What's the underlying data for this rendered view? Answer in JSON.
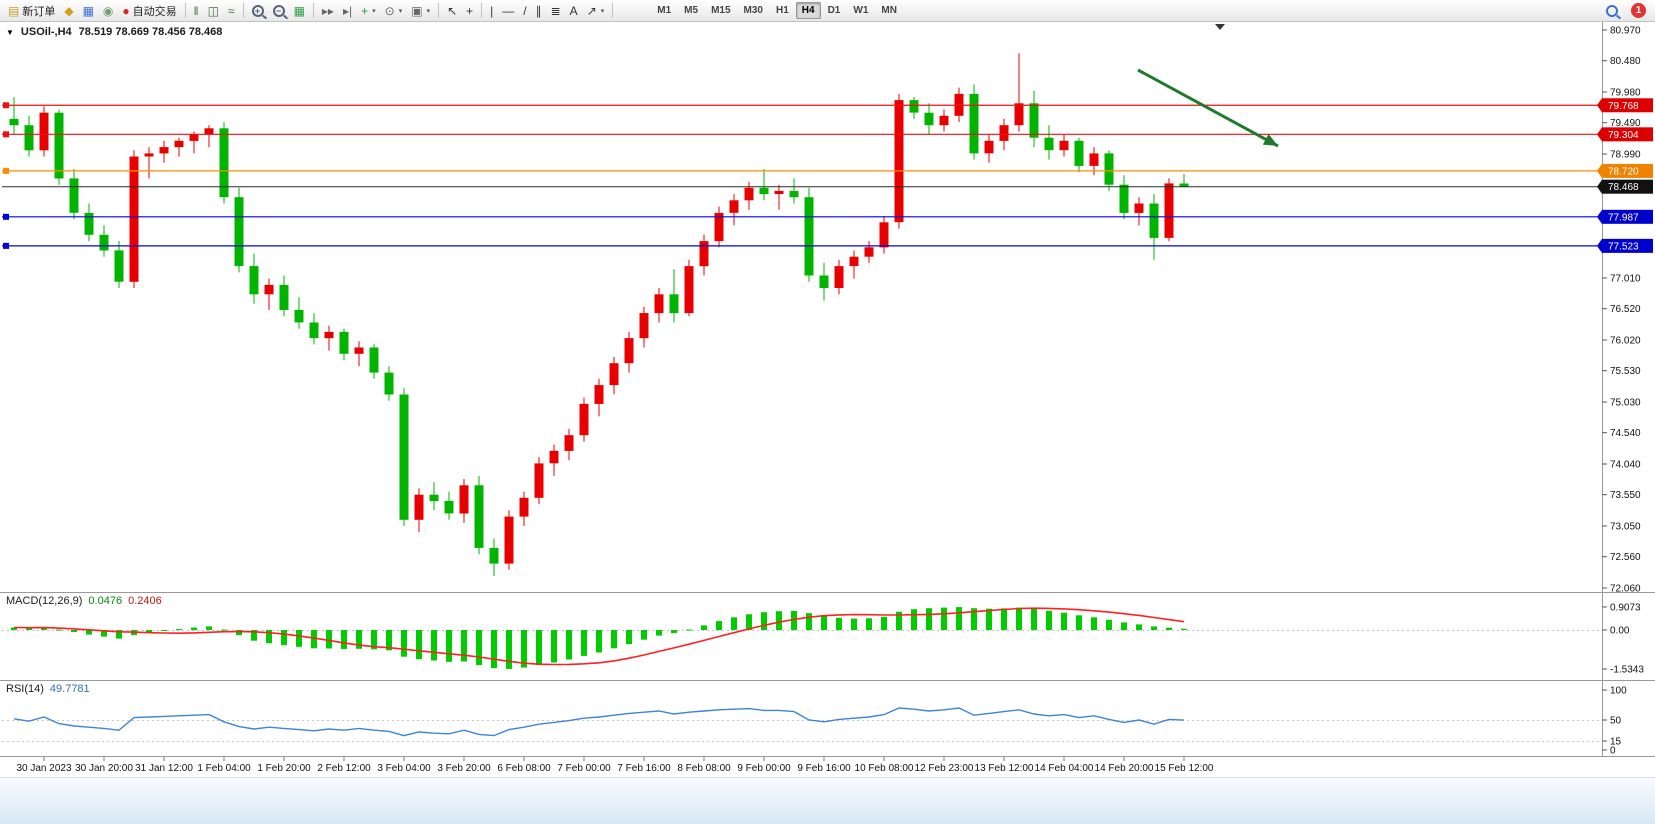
{
  "toolbar": {
    "notification_count": "1",
    "items": [
      {
        "kind": "button",
        "name": "new-order-button",
        "icon": "new-order-icon",
        "glyph": "▤",
        "color": "#c8a02c",
        "label": "新订单"
      },
      {
        "kind": "glyph",
        "name": "charts-window-button",
        "icon": "charts-icon",
        "glyph": "◆",
        "color": "#d4a017"
      },
      {
        "kind": "glyph",
        "name": "profiles-button",
        "icon": "profiles-icon",
        "glyph": "▦",
        "color": "#3b6fd4"
      },
      {
        "kind": "glyph",
        "name": "alerts-button",
        "icon": "alerts-icon",
        "glyph": "◉",
        "color": "#6f9f6f"
      },
      {
        "kind": "button",
        "name": "auto-trading-button",
        "icon": "autotrade-icon",
        "glyph": "●",
        "color": "#dd2222",
        "label": "自动交易"
      },
      {
        "kind": "sep"
      },
      {
        "kind": "glyph",
        "name": "bar-chart-type-button",
        "icon": "bar-chart-icon",
        "glyph": "‖",
        "color": "#456f45"
      },
      {
        "kind": "glyph",
        "name": "candlestick-type-button",
        "icon": "candlestick-icon",
        "glyph": "◫",
        "color": "#456f45"
      },
      {
        "kind": "glyph",
        "name": "line-chart-type-button",
        "icon": "line-chart-icon",
        "glyph": "≈",
        "color": "#456f45"
      },
      {
        "kind": "sep"
      },
      {
        "kind": "mag",
        "name": "zoom-in-button",
        "icon": "zoom-in-icon",
        "sign": "+",
        "color": "#55617a"
      },
      {
        "kind": "mag",
        "name": "zoom-out-button",
        "icon": "zoom-out-icon",
        "sign": "−",
        "color": "#55617a"
      },
      {
        "kind": "glyph",
        "name": "tile-windows-button",
        "icon": "tile-windows-icon",
        "glyph": "▦",
        "color": "#2f9e44"
      },
      {
        "kind": "sep"
      },
      {
        "kind": "glyph",
        "name": "auto-scroll-button",
        "icon": "auto-scroll-icon",
        "glyph": "▸▸",
        "color": "#666666"
      },
      {
        "kind": "glyph",
        "name": "chart-shift-button",
        "icon": "chart-shift-icon",
        "glyph": "▸|",
        "color": "#666666"
      },
      {
        "kind": "dropdown",
        "name": "indicators-button",
        "icon": "indicators-plus-icon",
        "glyph": "+",
        "color": "#1e9e3e"
      },
      {
        "kind": "dropdown",
        "name": "periods-button",
        "icon": "clock-icon",
        "glyph": "⊙",
        "color": "#666666"
      },
      {
        "kind": "dropdown",
        "name": "templates-button",
        "icon": "template-icon",
        "glyph": "▣",
        "color": "#666666"
      },
      {
        "kind": "sep"
      },
      {
        "kind": "glyph",
        "name": "cursor-button",
        "icon": "cursor-icon",
        "glyph": "↖",
        "color": "#333333"
      },
      {
        "kind": "glyph",
        "name": "crosshair-button",
        "icon": "crosshair-icon",
        "glyph": "+",
        "color": "#333333"
      },
      {
        "kind": "sep"
      },
      {
        "kind": "glyph",
        "name": "vertical-line-tool-button",
        "icon": "vline-icon",
        "glyph": "|",
        "color": "#333333"
      },
      {
        "kind": "glyph",
        "name": "horizontal-line-tool-button",
        "icon": "hline-icon",
        "glyph": "—",
        "color": "#333333"
      },
      {
        "kind": "glyph",
        "name": "trendline-tool-button",
        "icon": "trendline-icon",
        "glyph": "/",
        "color": "#333333"
      },
      {
        "kind": "glyph",
        "name": "channel-tool-button",
        "icon": "channel-icon",
        "glyph": "∥",
        "color": "#333333"
      },
      {
        "kind": "glyph",
        "name": "fibonacci-tool-button",
        "icon": "fibonacci-icon",
        "glyph": "≣",
        "color": "#333333"
      },
      {
        "kind": "glyph",
        "name": "text-tool-button",
        "icon": "text-icon",
        "glyph": "A",
        "color": "#333333"
      },
      {
        "kind": "dropdown",
        "name": "arrows-tool-button",
        "icon": "arrows-icon",
        "glyph": "↗",
        "color": "#333333"
      },
      {
        "kind": "sep"
      }
    ],
    "timeframes": {
      "options": [
        "M1",
        "M5",
        "M15",
        "M30",
        "H1",
        "H4",
        "D1",
        "W1",
        "MN"
      ],
      "active": "H4"
    }
  },
  "chart": {
    "symbol_period": "USOil-,H4",
    "ohlc_text": "78.519 78.669 78.456 78.468"
  },
  "indicators": {
    "macd": {
      "label": "MACD(12,26,9)",
      "main_value": "0.0476",
      "signal_value": "0.2406"
    },
    "rsi": {
      "label": "RSI(14)",
      "value": "49.7781"
    }
  },
  "chart_data": {
    "type": "candlestick",
    "symbol": "USOil-",
    "period": "H4",
    "title": "USOil-,H4 78.519 78.669 78.456 78.468",
    "price_range": [
      72.06,
      80.97
    ],
    "grid": false,
    "candle_colors": {
      "bull": "#e80000",
      "bear": "#00b400"
    },
    "price_ticks": [
      "80.970",
      "80.480",
      "79.980",
      "79.490",
      "78.990",
      "77.010",
      "76.520",
      "76.020",
      "75.530",
      "75.030",
      "74.540",
      "74.040",
      "73.550",
      "73.050",
      "72.560",
      "72.060"
    ],
    "levels": [
      {
        "name": "resistance-line-1",
        "price": 79.768,
        "label": "79.768",
        "color": "#f01010",
        "badge": "#dd0000",
        "is_current": false
      },
      {
        "name": "resistance-line-2",
        "price": 79.304,
        "label": "79.304",
        "color": "#f01010",
        "badge": "#dd0000",
        "is_current": false
      },
      {
        "name": "pivot-line",
        "price": 78.72,
        "label": "78.720",
        "color": "#ff8c00",
        "badge": "#ef8200",
        "is_current": false
      },
      {
        "name": "current-price-line",
        "price": 78.468,
        "label": "78.468",
        "color": "#2a2a2a",
        "badge": "#111111",
        "is_current": true
      },
      {
        "name": "support-line-1",
        "price": 77.987,
        "label": "77.987",
        "color": "#0000e0",
        "badge": "#0000cc",
        "is_current": false
      },
      {
        "name": "support-line-2",
        "price": 77.523,
        "label": "77.523",
        "color": "#0000e0",
        "badge": "#0000cc",
        "is_current": false
      }
    ],
    "time_labels": [
      "30 Jan 2023",
      "30 Jan 20:00",
      "31 Jan 12:00",
      "1 Feb 04:00",
      "1 Feb 20:00",
      "2 Feb 12:00",
      "3 Feb 04:00",
      "3 Feb 20:00",
      "6 Feb 08:00",
      "7 Feb 00:00",
      "7 Feb 16:00",
      "8 Feb 08:00",
      "9 Feb 00:00",
      "9 Feb 16:00",
      "10 Feb 08:00",
      "12 Feb 23:00",
      "13 Feb 12:00",
      "14 Feb 04:00",
      "14 Feb 20:00",
      "15 Feb 12:00"
    ],
    "trend_arrow": {
      "from": [
        1138,
        70
      ],
      "to": [
        1278,
        146
      ],
      "color": "#1f7a2e"
    },
    "ohlc": [
      [
        79.55,
        79.9,
        79.3,
        79.45
      ],
      [
        79.45,
        79.6,
        78.95,
        79.05
      ],
      [
        79.05,
        79.75,
        78.95,
        79.65
      ],
      [
        79.65,
        79.7,
        78.5,
        78.6
      ],
      [
        78.6,
        78.75,
        77.95,
        78.05
      ],
      [
        78.05,
        78.2,
        77.6,
        77.7
      ],
      [
        77.7,
        77.85,
        77.35,
        77.45
      ],
      [
        77.45,
        77.6,
        76.85,
        76.95
      ],
      [
        76.95,
        79.05,
        76.85,
        78.95
      ],
      [
        78.95,
        79.1,
        78.6,
        79.0
      ],
      [
        79.0,
        79.2,
        78.85,
        79.1
      ],
      [
        79.1,
        79.25,
        78.95,
        79.2
      ],
      [
        79.2,
        79.35,
        79.0,
        79.3
      ],
      [
        79.3,
        79.45,
        79.1,
        79.4
      ],
      [
        79.4,
        79.5,
        78.2,
        78.3
      ],
      [
        78.3,
        78.45,
        77.1,
        77.2
      ],
      [
        77.2,
        77.4,
        76.6,
        76.75
      ],
      [
        76.75,
        77.0,
        76.5,
        76.9
      ],
      [
        76.9,
        77.05,
        76.4,
        76.5
      ],
      [
        76.5,
        76.7,
        76.2,
        76.3
      ],
      [
        76.3,
        76.45,
        75.95,
        76.05
      ],
      [
        76.05,
        76.25,
        75.85,
        76.15
      ],
      [
        76.15,
        76.2,
        75.7,
        75.8
      ],
      [
        75.8,
        76.0,
        75.6,
        75.9
      ],
      [
        75.9,
        75.95,
        75.4,
        75.5
      ],
      [
        75.5,
        75.6,
        75.05,
        75.15
      ],
      [
        75.15,
        75.25,
        73.05,
        73.15
      ],
      [
        73.15,
        73.65,
        72.95,
        73.55
      ],
      [
        73.55,
        73.75,
        73.3,
        73.45
      ],
      [
        73.45,
        73.6,
        73.15,
        73.25
      ],
      [
        73.25,
        73.8,
        73.1,
        73.7
      ],
      [
        73.7,
        73.85,
        72.6,
        72.7
      ],
      [
        72.7,
        72.85,
        72.25,
        72.45
      ],
      [
        72.45,
        73.3,
        72.35,
        73.2
      ],
      [
        73.2,
        73.6,
        73.05,
        73.5
      ],
      [
        73.5,
        74.15,
        73.4,
        74.05
      ],
      [
        74.05,
        74.35,
        73.85,
        74.25
      ],
      [
        74.25,
        74.6,
        74.1,
        74.5
      ],
      [
        74.5,
        75.1,
        74.4,
        75.0
      ],
      [
        75.0,
        75.4,
        74.8,
        75.3
      ],
      [
        75.3,
        75.75,
        75.15,
        75.65
      ],
      [
        75.65,
        76.15,
        75.5,
        76.05
      ],
      [
        76.05,
        76.55,
        75.9,
        76.45
      ],
      [
        76.45,
        76.85,
        76.3,
        76.75
      ],
      [
        76.75,
        77.15,
        76.3,
        76.45
      ],
      [
        76.45,
        77.3,
        76.4,
        77.2
      ],
      [
        77.2,
        77.7,
        77.05,
        77.6
      ],
      [
        77.6,
        78.15,
        77.5,
        78.05
      ],
      [
        78.05,
        78.35,
        77.85,
        78.25
      ],
      [
        78.25,
        78.55,
        78.1,
        78.45
      ],
      [
        78.45,
        78.75,
        78.25,
        78.35
      ],
      [
        78.35,
        78.5,
        78.1,
        78.4
      ],
      [
        78.4,
        78.6,
        78.2,
        78.3
      ],
      [
        78.3,
        78.45,
        76.95,
        77.05
      ],
      [
        77.05,
        77.25,
        76.65,
        76.85
      ],
      [
        76.85,
        77.3,
        76.75,
        77.2
      ],
      [
        77.2,
        77.45,
        77.0,
        77.35
      ],
      [
        77.35,
        77.6,
        77.25,
        77.5
      ],
      [
        77.5,
        78.0,
        77.4,
        77.9
      ],
      [
        77.9,
        79.95,
        77.8,
        79.85
      ],
      [
        79.85,
        79.9,
        79.55,
        79.65
      ],
      [
        79.65,
        79.8,
        79.3,
        79.45
      ],
      [
        79.45,
        79.7,
        79.35,
        79.6
      ],
      [
        79.6,
        80.05,
        79.5,
        79.95
      ],
      [
        79.95,
        80.1,
        78.9,
        79.0
      ],
      [
        79.0,
        79.3,
        78.85,
        79.2
      ],
      [
        79.2,
        79.55,
        79.05,
        79.45
      ],
      [
        79.45,
        80.6,
        79.35,
        79.8
      ],
      [
        79.8,
        80.0,
        79.1,
        79.25
      ],
      [
        79.25,
        79.45,
        78.9,
        79.05
      ],
      [
        79.05,
        79.3,
        78.95,
        79.2
      ],
      [
        79.2,
        79.25,
        78.7,
        78.8
      ],
      [
        78.8,
        79.1,
        78.65,
        79.0
      ],
      [
        79.0,
        79.05,
        78.4,
        78.5
      ],
      [
        78.5,
        78.65,
        77.95,
        78.05
      ],
      [
        78.05,
        78.3,
        77.85,
        78.2
      ],
      [
        78.2,
        78.35,
        77.3,
        77.65
      ],
      [
        77.65,
        78.6,
        77.6,
        78.52
      ],
      [
        78.519,
        78.669,
        78.456,
        78.468
      ]
    ],
    "macd": {
      "axis_labels": [
        "0.9073",
        "0.00",
        "-1.5343"
      ],
      "histogram_color": "#00cc00",
      "signal_color": "#ff2020",
      "values": [
        0.1,
        0.08,
        0.1,
        0.02,
        -0.08,
        -0.18,
        -0.26,
        -0.34,
        -0.2,
        -0.1,
        -0.02,
        0.04,
        0.1,
        0.14,
        0.02,
        -0.2,
        -0.42,
        -0.52,
        -0.6,
        -0.66,
        -0.72,
        -0.73,
        -0.75,
        -0.74,
        -0.76,
        -0.8,
        -1.05,
        -1.15,
        -1.2,
        -1.25,
        -1.24,
        -1.38,
        -1.5,
        -1.53,
        -1.48,
        -1.38,
        -1.28,
        -1.16,
        -1.02,
        -0.88,
        -0.72,
        -0.55,
        -0.38,
        -0.22,
        -0.12,
        0.02,
        0.18,
        0.35,
        0.5,
        0.62,
        0.7,
        0.74,
        0.75,
        0.66,
        0.55,
        0.48,
        0.45,
        0.46,
        0.52,
        0.72,
        0.82,
        0.86,
        0.88,
        0.9,
        0.86,
        0.84,
        0.85,
        0.88,
        0.84,
        0.76,
        0.68,
        0.58,
        0.5,
        0.4,
        0.3,
        0.22,
        0.14,
        0.09,
        0.0476
      ]
    },
    "rsi": {
      "axis_labels": [
        "100",
        "50",
        "15",
        "0"
      ],
      "levels": [
        50,
        15
      ],
      "line_color": "#3d85d8",
      "values": [
        52,
        48,
        55,
        44,
        40,
        38,
        36,
        33,
        54,
        55,
        56,
        57,
        58,
        59,
        47,
        39,
        35,
        38,
        36,
        34,
        32,
        35,
        33,
        36,
        33,
        31,
        24,
        30,
        28,
        27,
        33,
        26,
        24,
        34,
        38,
        43,
        46,
        49,
        53,
        55,
        58,
        61,
        63,
        65,
        60,
        63,
        65,
        67,
        68,
        69,
        66,
        66,
        64,
        50,
        47,
        51,
        53,
        55,
        59,
        70,
        68,
        65,
        67,
        70,
        58,
        61,
        64,
        67,
        60,
        57,
        59,
        54,
        57,
        51,
        46,
        50,
        43,
        51,
        49.7781
      ]
    }
  }
}
